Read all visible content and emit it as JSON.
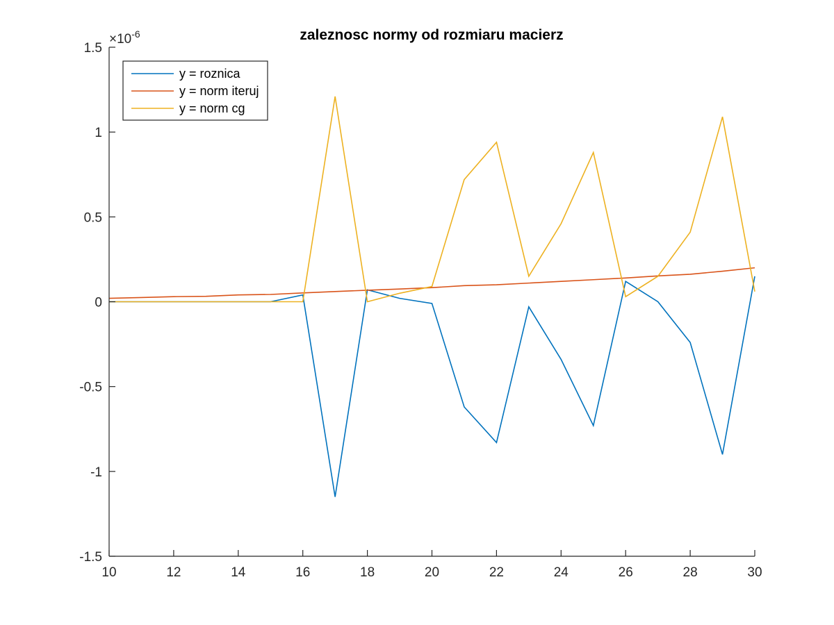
{
  "chart_data": {
    "type": "line",
    "title": "zaleznosc normy od rozmiaru macierz",
    "xlabel": "",
    "ylabel": "",
    "xlim": [
      10,
      30
    ],
    "ylim": [
      -1.5,
      1.5
    ],
    "y_exponent_label": "×10",
    "y_exponent_power": "-6",
    "xticks": [
      10,
      12,
      14,
      16,
      18,
      20,
      22,
      24,
      26,
      28,
      30
    ],
    "xtick_labels": [
      "10",
      "12",
      "14",
      "16",
      "18",
      "20",
      "22",
      "24",
      "26",
      "28",
      "30"
    ],
    "yticks": [
      -1.5,
      -1,
      -0.5,
      0,
      0.5,
      1,
      1.5
    ],
    "ytick_labels": [
      "-1.5",
      "-1",
      "-0.5",
      "0",
      "0.5",
      "1",
      "1.5"
    ],
    "grid": false,
    "legend_position": "top-left",
    "x": [
      10,
      11,
      12,
      13,
      14,
      15,
      16,
      17,
      18,
      19,
      20,
      21,
      22,
      23,
      24,
      25,
      26,
      27,
      28,
      29,
      30
    ],
    "series": [
      {
        "name": "y = roznica",
        "color": "#0072BD",
        "values": [
          0,
          0,
          0,
          0,
          0,
          0,
          0.04,
          -1.15,
          0.07,
          0.02,
          -0.01,
          -0.62,
          -0.83,
          -0.03,
          -0.34,
          -0.73,
          0.12,
          0.0,
          -0.24,
          -0.9,
          0.15
        ]
      },
      {
        "name": "y = norm iteruj",
        "color": "#D95319",
        "values": [
          0.02,
          0.025,
          0.03,
          0.032,
          0.04,
          0.043,
          0.052,
          0.06,
          0.068,
          0.075,
          0.083,
          0.095,
          0.1,
          0.11,
          0.12,
          0.13,
          0.14,
          0.152,
          0.162,
          0.18,
          0.2
        ]
      },
      {
        "name": "y = norm cg",
        "color": "#EDB120",
        "values": [
          0,
          0,
          0,
          0,
          0,
          0,
          0,
          1.21,
          0,
          0.05,
          0.09,
          0.72,
          0.94,
          0.15,
          0.46,
          0.88,
          0.03,
          0.15,
          0.41,
          1.09,
          0.06
        ]
      }
    ]
  }
}
